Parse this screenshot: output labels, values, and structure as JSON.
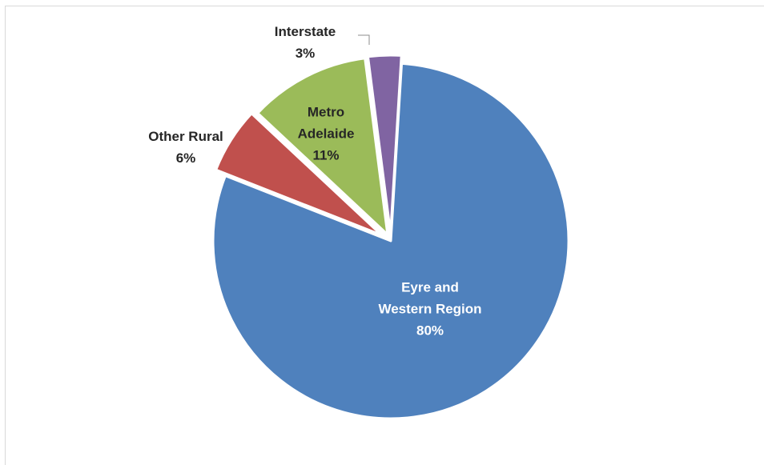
{
  "chart_data": {
    "type": "pie",
    "title": "",
    "legend": "none",
    "exploded": true,
    "slices": [
      {
        "label": [
          "Eyre and",
          "Western Region"
        ],
        "value": 80,
        "value_text": "80%",
        "color": "#4f81bd",
        "label_position": "inside",
        "label_color": "#ffffff"
      },
      {
        "label": [
          "Other Rural"
        ],
        "value": 6,
        "value_text": "6%",
        "color": "#c0504d",
        "label_position": "outside",
        "label_color": "#262626"
      },
      {
        "label": [
          "Metro",
          "Adelaide"
        ],
        "value": 11,
        "value_text": "11%",
        "color": "#9bbb59",
        "label_position": "inside",
        "label_color": "#262626"
      },
      {
        "label": [
          "Interstate"
        ],
        "value": 3,
        "value_text": "3%",
        "color": "#8064a2",
        "label_position": "outside",
        "label_color": "#262626"
      }
    ]
  }
}
